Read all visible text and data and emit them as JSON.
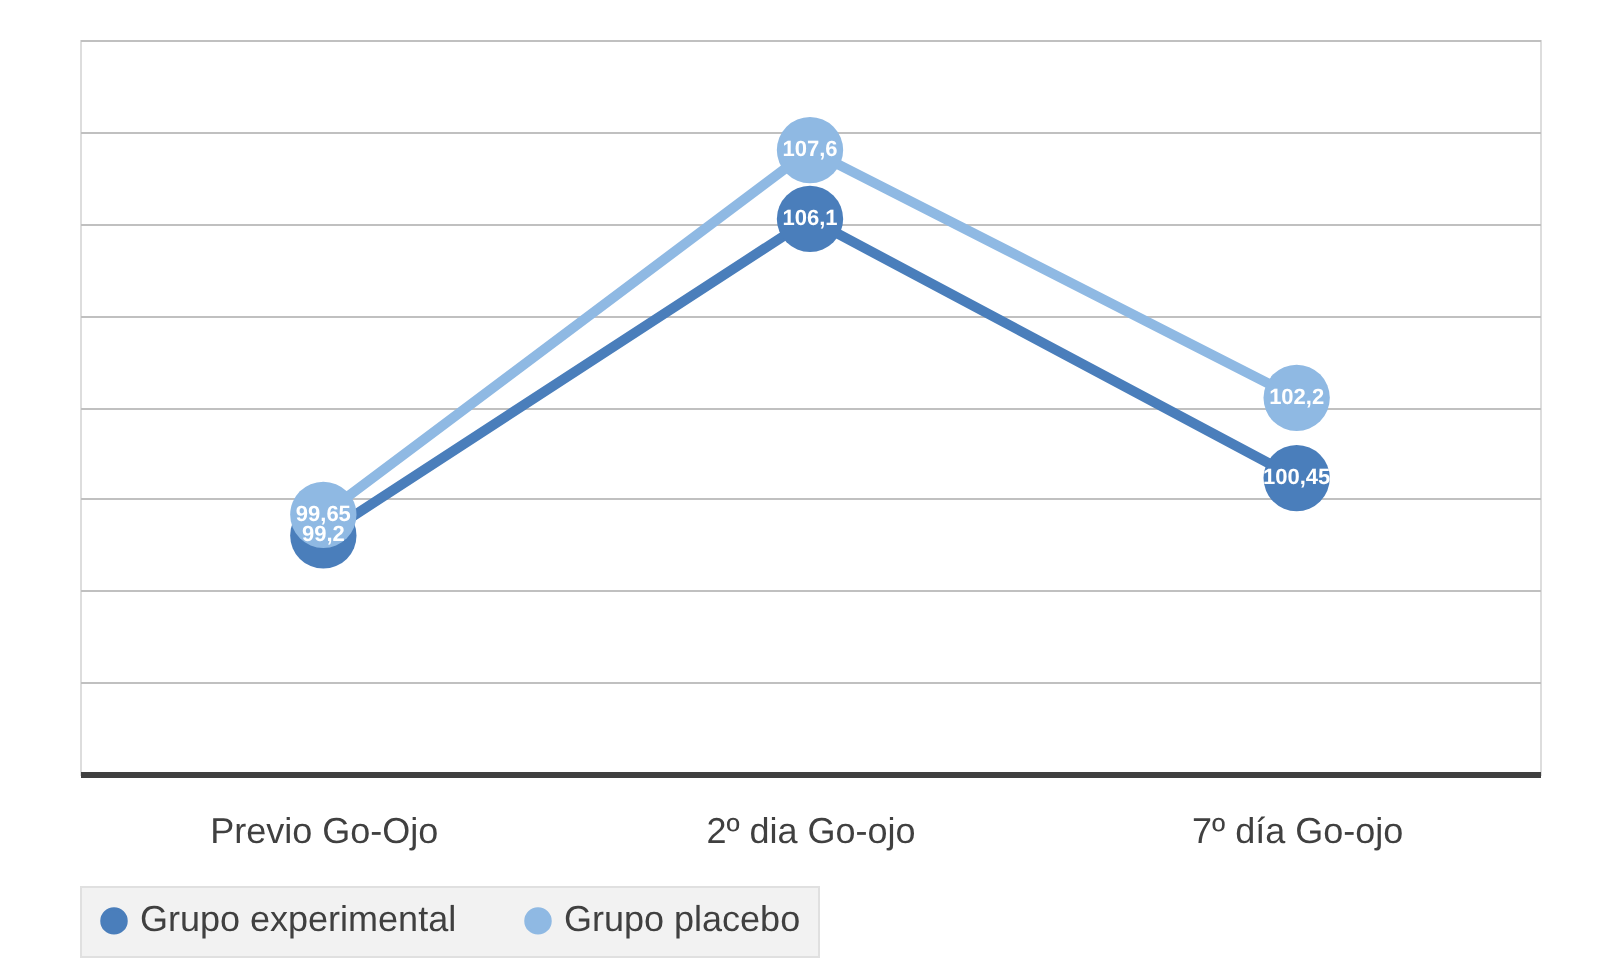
{
  "chart_data": {
    "type": "line",
    "categories": [
      "Previo Go-Ojo",
      "2º dia Go-ojo",
      "7º día Go-ojo"
    ],
    "series": [
      {
        "name": "Grupo experimental",
        "color": "#4a7ebb",
        "values": [
          99.2,
          106.1,
          100.45
        ],
        "value_labels": [
          "99,2",
          "106,1",
          "100,45"
        ]
      },
      {
        "name": "Grupo placebo",
        "color": "#8fb9e3",
        "values": [
          99.65,
          107.6,
          102.2
        ],
        "value_labels": [
          "99,65",
          "107,6",
          "102,2"
        ]
      }
    ],
    "ylim": [
      94,
      110
    ],
    "yticks": [
      94,
      96,
      98,
      100,
      102,
      104,
      106,
      108,
      110
    ],
    "tick_labels": "x",
    "grid": "y",
    "legend": "bottom",
    "marker": "circle",
    "line_style": "solid"
  }
}
